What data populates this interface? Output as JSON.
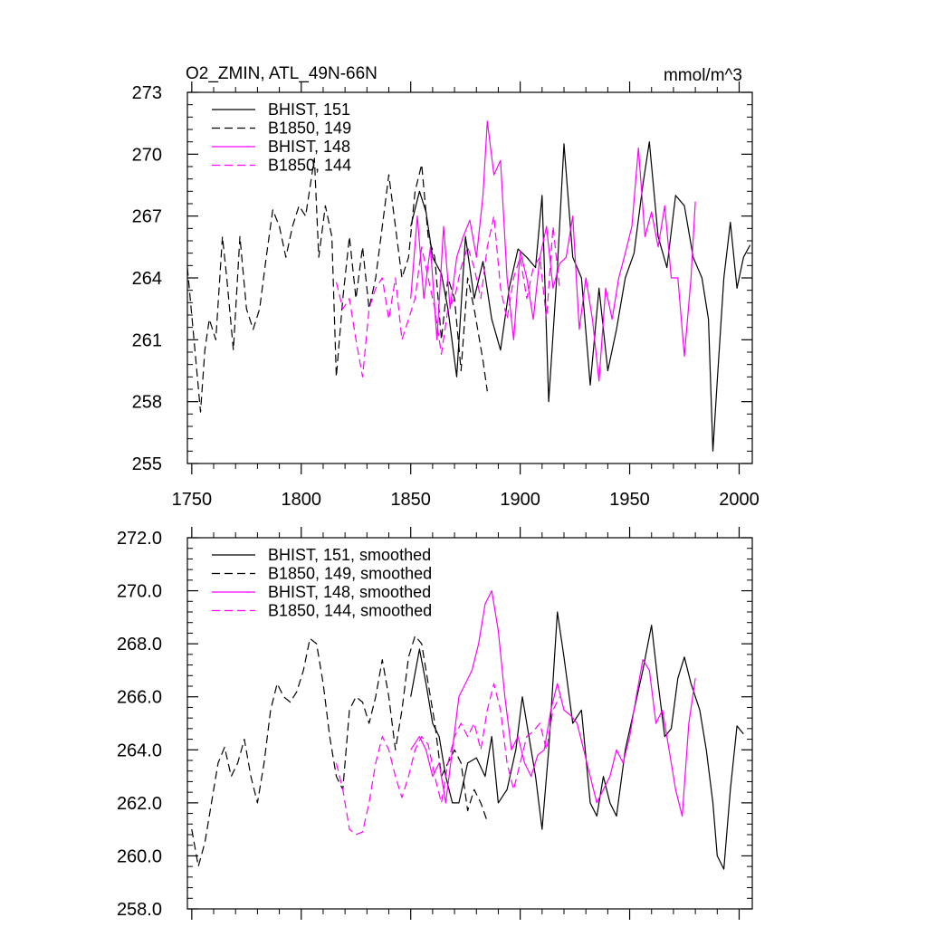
{
  "chart_data": [
    {
      "type": "line",
      "title_left": "O2_ZMIN, ATL_49N-66N",
      "title_right": "mmol/m^3",
      "xlim": [
        1748,
        2006
      ],
      "ylim": [
        255,
        273
      ],
      "xticks": [
        1750,
        1800,
        1850,
        1900,
        1950,
        2000
      ],
      "xtick_labels": [
        "1750",
        "1800",
        "1850",
        "1900",
        "1950",
        "2000"
      ],
      "yticks": [
        255,
        258,
        261,
        264,
        267,
        270,
        273
      ],
      "ytick_labels": [
        "255",
        "258",
        "261",
        "264",
        "267",
        "270",
        "273"
      ],
      "series": [
        {
          "name": "BHIST, 151",
          "legend": "BHIST, 151",
          "color": "#000000",
          "dashed": false,
          "x": [
            1850,
            1854,
            1857,
            1860,
            1864,
            1867,
            1871,
            1875,
            1879,
            1883,
            1887,
            1891,
            1895,
            1899,
            1903,
            1907,
            1910,
            1913,
            1917,
            1920,
            1924,
            1928,
            1932,
            1936,
            1940,
            1944,
            1948,
            1952,
            1956,
            1959,
            1963,
            1967,
            1971,
            1975,
            1979,
            1983,
            1986,
            1988,
            1990,
            1993,
            1996,
            1999,
            2002,
            2005
          ],
          "y": [
            266.5,
            268.2,
            267.2,
            265.0,
            264.2,
            262.5,
            259.2,
            266.0,
            263.0,
            264.8,
            262.0,
            260.5,
            263.5,
            265.4,
            265.0,
            264.5,
            268.0,
            258.0,
            264.5,
            270.5,
            265.0,
            264.0,
            258.8,
            263.5,
            259.5,
            261.5,
            264.0,
            265.2,
            268.5,
            270.6,
            266.0,
            264.5,
            268.0,
            267.5,
            265.0,
            264.0,
            262.0,
            255.6,
            259.0,
            264.0,
            266.7,
            263.5,
            265.0,
            265.6
          ]
        },
        {
          "name": "B1850, 149",
          "legend": "B1850, 149",
          "color": "#000000",
          "dashed": true,
          "x": [
            1748,
            1751,
            1754,
            1756,
            1758,
            1761,
            1764,
            1766,
            1769,
            1772,
            1775,
            1778,
            1781,
            1784,
            1787,
            1790,
            1793,
            1796,
            1799,
            1802,
            1806,
            1808,
            1811,
            1814,
            1816,
            1819,
            1822,
            1825,
            1828,
            1831,
            1834,
            1837,
            1840,
            1843,
            1846,
            1849,
            1852,
            1855,
            1858,
            1861,
            1864,
            1867,
            1870,
            1873,
            1876,
            1879,
            1883,
            1885
          ],
          "y": [
            264.5,
            261.0,
            257.5,
            260.5,
            262.0,
            261.0,
            266.0,
            264.0,
            260.5,
            266.0,
            262.5,
            261.5,
            262.5,
            265.0,
            267.3,
            266.5,
            265.0,
            266.5,
            267.5,
            267.0,
            269.8,
            265.0,
            267.5,
            266.0,
            259.2,
            263.0,
            266.0,
            263.0,
            265.5,
            262.5,
            264.0,
            266.5,
            269.0,
            266.5,
            264.0,
            265.0,
            268.2,
            269.5,
            266.0,
            265.0,
            261.0,
            264.0,
            263.0,
            259.5,
            264.0,
            262.5,
            260.0,
            258.5
          ]
        },
        {
          "name": "BHIST, 148",
          "legend": "BHIST, 148",
          "color": "#ff00ff",
          "dashed": false,
          "x": [
            1850,
            1853,
            1856,
            1859,
            1862,
            1865,
            1868,
            1871,
            1874,
            1877,
            1880,
            1883,
            1885,
            1888,
            1891,
            1894,
            1897,
            1900,
            1903,
            1906,
            1909,
            1912,
            1915,
            1918,
            1921,
            1924,
            1927,
            1930,
            1933,
            1936,
            1939,
            1942,
            1945,
            1948,
            1951,
            1954,
            1957,
            1960,
            1963,
            1966,
            1969,
            1972,
            1975,
            1978,
            1980
          ],
          "y": [
            263.0,
            267.0,
            263.0,
            265.5,
            261.0,
            266.5,
            262.5,
            265.0,
            266.0,
            266.8,
            265.0,
            268.0,
            271.6,
            269.0,
            269.7,
            264.0,
            261.0,
            265.3,
            264.0,
            262.0,
            265.0,
            266.5,
            263.5,
            264.7,
            265.0,
            267.0,
            261.5,
            264.0,
            262.0,
            259.0,
            263.5,
            262.0,
            264.0,
            265.2,
            266.5,
            270.3,
            266.0,
            267.2,
            265.5,
            267.5,
            264.0,
            264.0,
            260.2,
            264.0,
            267.7
          ]
        },
        {
          "name": "B1850, 144",
          "legend": "B1850, 144",
          "color": "#ff00ff",
          "dashed": true,
          "x": [
            1816,
            1819,
            1822,
            1825,
            1828,
            1831,
            1834,
            1837,
            1840,
            1843,
            1846,
            1849,
            1852,
            1855,
            1858,
            1861,
            1864,
            1867,
            1870,
            1873,
            1876,
            1879,
            1882,
            1885,
            1888,
            1891,
            1894,
            1897,
            1900,
            1903,
            1906,
            1909,
            1912,
            1915,
            1918
          ],
          "y": [
            263.8,
            262.5,
            263.0,
            261.0,
            259.2,
            262.5,
            263.5,
            264.0,
            262.0,
            264.0,
            261.0,
            262.0,
            263.0,
            265.5,
            264.0,
            262.5,
            260.3,
            262.5,
            263.0,
            264.5,
            265.5,
            264.5,
            263.0,
            265.5,
            267.0,
            263.5,
            262.0,
            264.0,
            265.0,
            263.0,
            264.5,
            265.0,
            262.0,
            266.5,
            263.5
          ]
        }
      ]
    },
    {
      "type": "line",
      "xlim": [
        1748,
        2006
      ],
      "ylim": [
        258,
        272
      ],
      "xticks": [
        1750,
        1800,
        1850,
        1900,
        1950,
        2000
      ],
      "yticks": [
        258,
        260,
        262,
        264,
        266,
        268,
        270,
        272
      ],
      "ytick_labels": [
        "258.0",
        "260.0",
        "262.0",
        "264.0",
        "266.0",
        "268.0",
        "270.0",
        "272.0"
      ],
      "series": [
        {
          "name": "BHIST, 151, smoothed",
          "legend": "BHIST, 151, smoothed",
          "color": "#000000",
          "dashed": false,
          "x": [
            1850,
            1854,
            1857,
            1860,
            1863,
            1866,
            1869,
            1872,
            1876,
            1880,
            1884,
            1887,
            1890,
            1894,
            1898,
            1901,
            1904,
            1907,
            1910,
            1913,
            1917,
            1920,
            1924,
            1928,
            1932,
            1935,
            1938,
            1941,
            1944,
            1948,
            1952,
            1956,
            1960,
            1963,
            1966,
            1969,
            1972,
            1975,
            1978,
            1982,
            1985,
            1988,
            1990,
            1993,
            1996,
            1999,
            2002
          ],
          "y": [
            266.0,
            267.8,
            266.5,
            265.0,
            264.5,
            263.0,
            262.0,
            262.0,
            263.5,
            263.7,
            263.0,
            264.5,
            262.0,
            262.5,
            264.0,
            266.0,
            264.5,
            263.0,
            261.0,
            264.0,
            269.2,
            267.5,
            265.0,
            265.5,
            262.0,
            261.5,
            263.0,
            262.0,
            261.5,
            264.0,
            265.5,
            267.0,
            268.7,
            266.5,
            264.5,
            264.8,
            266.7,
            267.5,
            266.5,
            265.5,
            264.0,
            262.0,
            260.0,
            259.5,
            262.5,
            264.9,
            264.6
          ]
        },
        {
          "name": "B1850, 149, smoothed",
          "legend": "B1850, 149, smoothed",
          "color": "#000000",
          "dashed": true,
          "x": [
            1750,
            1753,
            1756,
            1759,
            1762,
            1765,
            1768,
            1771,
            1774,
            1777,
            1780,
            1783,
            1786,
            1789,
            1792,
            1795,
            1798,
            1801,
            1804,
            1807,
            1810,
            1813,
            1816,
            1819,
            1822,
            1825,
            1828,
            1831,
            1834,
            1837,
            1840,
            1843,
            1846,
            1849,
            1852,
            1855,
            1858,
            1861,
            1864,
            1867,
            1870,
            1873,
            1876,
            1879,
            1882,
            1885
          ],
          "y": [
            261.0,
            259.6,
            260.5,
            262.0,
            263.5,
            264.1,
            263.0,
            263.5,
            264.4,
            263.0,
            262.0,
            263.5,
            265.5,
            266.5,
            266.0,
            265.8,
            266.2,
            267.0,
            268.2,
            268.0,
            266.5,
            264.5,
            263.0,
            262.5,
            265.5,
            266.0,
            265.8,
            265.0,
            266.0,
            267.4,
            266.0,
            264.0,
            265.5,
            267.5,
            268.3,
            268.0,
            266.5,
            265.0,
            263.0,
            263.5,
            264.0,
            263.5,
            261.7,
            262.5,
            262.0,
            261.3
          ]
        },
        {
          "name": "BHIST, 148, smoothed",
          "legend": "BHIST, 148, smoothed",
          "color": "#ff00ff",
          "dashed": false,
          "x": [
            1850,
            1854,
            1857,
            1860,
            1863,
            1866,
            1869,
            1872,
            1875,
            1878,
            1881,
            1884,
            1887,
            1890,
            1893,
            1896,
            1899,
            1902,
            1905,
            1908,
            1911,
            1914,
            1917,
            1920,
            1923,
            1926,
            1929,
            1932,
            1935,
            1938,
            1941,
            1944,
            1947,
            1950,
            1953,
            1956,
            1959,
            1962,
            1965,
            1968,
            1971,
            1974,
            1977,
            1980
          ],
          "y": [
            264.0,
            264.5,
            264.0,
            263.0,
            263.5,
            262.0,
            264.0,
            266.0,
            266.5,
            267.0,
            268.0,
            269.5,
            270.0,
            268.5,
            266.0,
            264.0,
            264.5,
            263.5,
            263.0,
            263.8,
            264.0,
            265.5,
            266.5,
            265.5,
            265.3,
            265.0,
            264.0,
            263.0,
            262.0,
            262.5,
            263.0,
            264.0,
            263.5,
            264.5,
            266.0,
            267.4,
            267.0,
            265.0,
            265.5,
            264.0,
            262.5,
            261.5,
            265.0,
            266.7
          ]
        },
        {
          "name": "B1850, 144, smoothed",
          "legend": "B1850, 144, smoothed",
          "color": "#ff00ff",
          "dashed": true,
          "x": [
            1816,
            1819,
            1822,
            1825,
            1828,
            1831,
            1834,
            1837,
            1840,
            1843,
            1846,
            1849,
            1852,
            1855,
            1858,
            1861,
            1864,
            1867,
            1870,
            1873,
            1876,
            1879,
            1882,
            1885,
            1888,
            1891,
            1894,
            1897,
            1900,
            1903,
            1906,
            1909,
            1912,
            1915,
            1918
          ],
          "y": [
            263.5,
            262.5,
            261.0,
            260.8,
            260.9,
            262.0,
            263.5,
            264.5,
            264.0,
            263.0,
            262.2,
            263.0,
            264.0,
            264.5,
            264.2,
            263.0,
            262.0,
            263.5,
            264.5,
            265.0,
            264.5,
            265.0,
            264.0,
            265.5,
            266.5,
            265.5,
            263.5,
            262.5,
            263.5,
            264.5,
            264.7,
            265.0,
            264.0,
            265.5,
            266.0
          ]
        }
      ]
    }
  ]
}
